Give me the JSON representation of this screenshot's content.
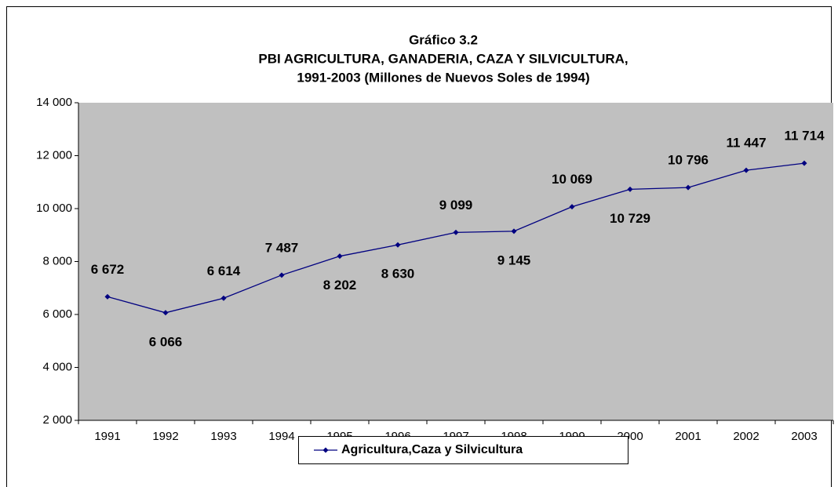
{
  "chart_data": {
    "type": "line",
    "title": [
      "Gráfico 3.2",
      "PBI AGRICULTURA, GANADERIA, CAZA Y SILVICULTURA,",
      "1991-2003 (Millones de Nuevos Soles de 1994)"
    ],
    "categories": [
      "1991",
      "1992",
      "1993",
      "1994",
      "1995",
      "1996",
      "1997",
      "1998",
      "1999",
      "2000",
      "2001",
      "2002",
      "2003"
    ],
    "series": [
      {
        "name": "Agricultura,Caza y Silvicultura",
        "color": "#000080",
        "values": [
          6672,
          6066,
          6614,
          7487,
          8202,
          8630,
          9099,
          9145,
          10069,
          10729,
          10796,
          11447,
          11714
        ],
        "value_labels": [
          "6 672",
          "6 066",
          "6 614",
          "7 487",
          "8 202",
          "8 630",
          "9 099",
          "9 145",
          "10 069",
          "10 729",
          "10 796",
          "11 447",
          "11 714"
        ]
      }
    ],
    "ylim": [
      2000,
      14000
    ],
    "yticks": [
      {
        "value": 2000,
        "label": "2 000"
      },
      {
        "value": 4000,
        "label": "4 000"
      },
      {
        "value": 6000,
        "label": "6 000"
      },
      {
        "value": 8000,
        "label": "8 000"
      },
      {
        "value": 10000,
        "label": "10 000"
      },
      {
        "value": 12000,
        "label": "12 000"
      },
      {
        "value": 14000,
        "label": "14 000"
      }
    ],
    "background": "#c0c0c0",
    "legend": "bottom"
  }
}
